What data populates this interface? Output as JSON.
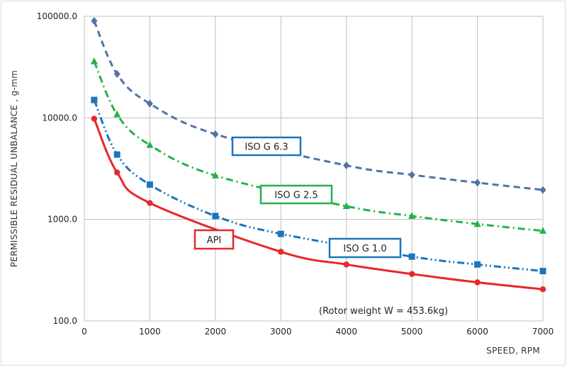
{
  "chart_data": {
    "type": "line",
    "y_scale": "log",
    "ylim": [
      100,
      100000
    ],
    "xlim": [
      0,
      7000
    ],
    "grid": true,
    "xlabel": "SPEED, RPM",
    "ylabel": "PERMISSIBLE  RESIDUAL  UNBALANCE  ,  g-mm",
    "x_ticks": [
      "0",
      "1000",
      "2000",
      "3000",
      "4000",
      "5000",
      "6000",
      "7000"
    ],
    "y_ticks": [
      "100.0",
      "1000.0",
      "10000.0",
      "100000.0"
    ],
    "annotation": "(Rotor weight W = 453.6kg)",
    "series": [
      {
        "name": "ISO G 6.3",
        "color": "#4f74a8",
        "line_style": "dashed",
        "marker": "diamond",
        "x": [
          150,
          500,
          1000,
          2000,
          4000,
          5000,
          6000,
          7000
        ],
        "y": [
          90000,
          27000,
          13800,
          6900,
          3400,
          2750,
          2300,
          1950
        ]
      },
      {
        "name": "ISO G 2.5",
        "color": "#22b14c",
        "line_style": "dash-dot",
        "marker": "triangle",
        "x": [
          150,
          500,
          1000,
          2000,
          4000,
          5000,
          6000,
          7000
        ],
        "y": [
          36000,
          10800,
          5400,
          2700,
          1350,
          1080,
          900,
          770
        ]
      },
      {
        "name": "ISO G 1.0",
        "color": "#1b75bc",
        "line_style": "dash-dot-dot",
        "marker": "square",
        "x": [
          150,
          500,
          1000,
          2000,
          3000,
          5000,
          6000,
          7000
        ],
        "y": [
          15000,
          4350,
          2200,
          1080,
          720,
          430,
          360,
          310
        ]
      },
      {
        "name": "API",
        "color": "#e8262b",
        "line_style": "solid",
        "marker": "circle",
        "x": [
          150,
          500,
          1000,
          3000,
          4000,
          5000,
          6000,
          7000
        ],
        "y": [
          9800,
          2900,
          1450,
          480,
          360,
          290,
          240,
          205
        ]
      }
    ],
    "callouts": [
      {
        "label": "ISO G 6.3",
        "border": "#1b75bc"
      },
      {
        "label": "ISO G 2.5",
        "border": "#22b14c"
      },
      {
        "label": "ISO G 1.0",
        "border": "#1b75bc"
      },
      {
        "label": "API",
        "border": "#e8262b"
      }
    ]
  }
}
